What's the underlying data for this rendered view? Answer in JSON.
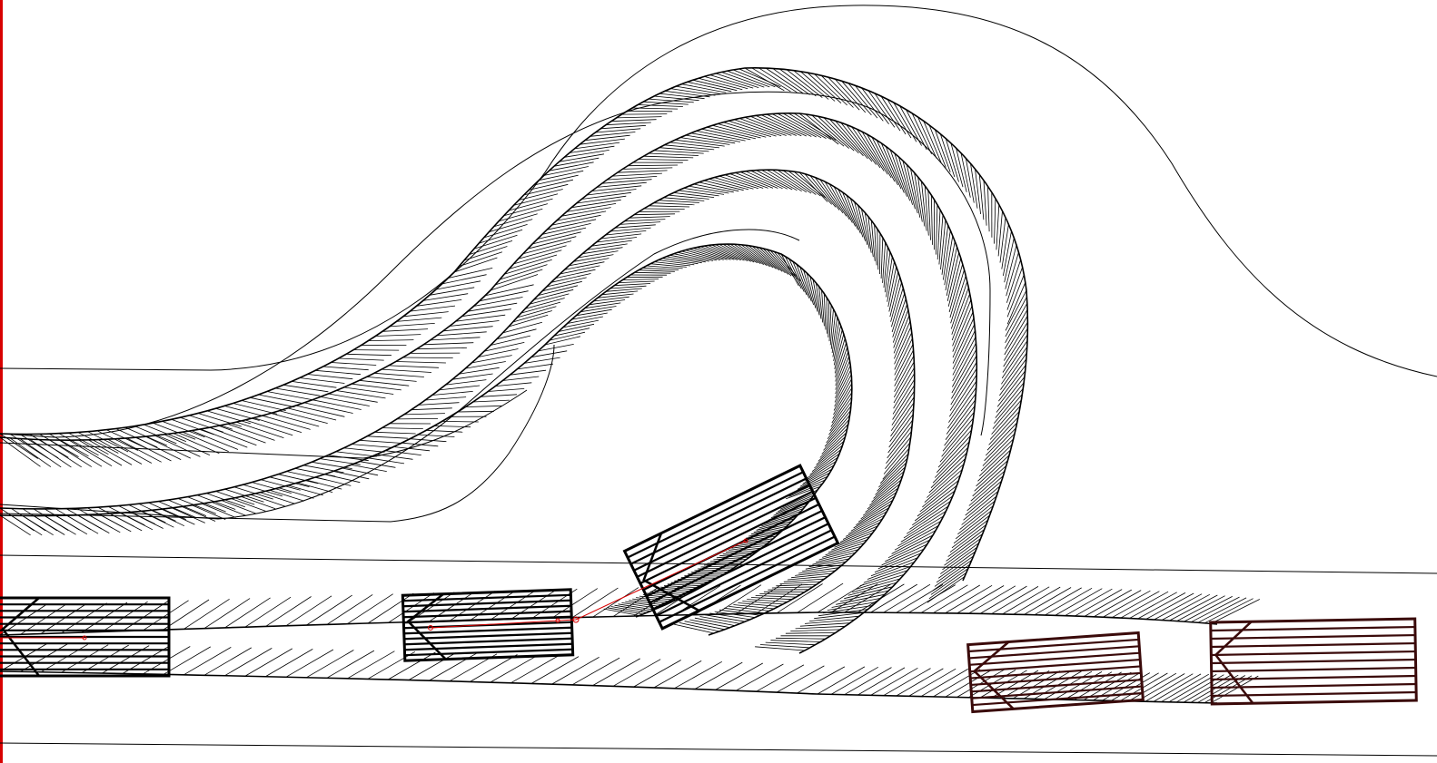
{
  "colors": {
    "background": "#ffffff",
    "line": "#000000",
    "path_highlight": "#d80000",
    "parked_vehicle": "#3a0a0a"
  },
  "scene": {
    "description_none": "",
    "vehicles": [
      {
        "id": "ego-start",
        "style": "outline"
      },
      {
        "id": "ego-mid",
        "style": "outline"
      },
      {
        "id": "ego-turning",
        "style": "outline"
      },
      {
        "id": "parked-1",
        "style": "parked"
      },
      {
        "id": "parked-2",
        "style": "parked"
      }
    ]
  }
}
